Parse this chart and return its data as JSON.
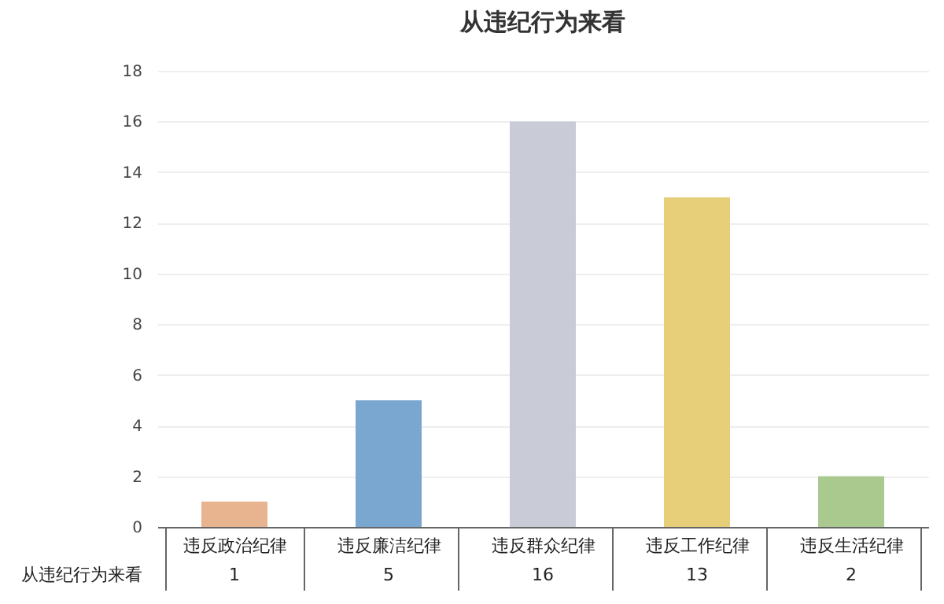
{
  "chart_data": {
    "type": "bar",
    "title": "从违纪行为来看",
    "categories": [
      "违反政治纪律",
      "违反廉洁纪律",
      "违反群众纪律",
      "违反工作纪律",
      "违反生活纪律"
    ],
    "series": [
      {
        "name": "从违纪行为来看",
        "values": [
          1,
          5,
          16,
          13,
          2
        ],
        "colors": [
          "#e8b490",
          "#7aa7cf",
          "#c9ccd7",
          "#e7cf7a",
          "#a9c98f"
        ]
      }
    ],
    "ylim": [
      0,
      18
    ],
    "yticks": [
      0,
      2,
      4,
      6,
      8,
      10,
      12,
      14,
      16,
      18
    ],
    "grid": "y",
    "data_labels": true
  }
}
